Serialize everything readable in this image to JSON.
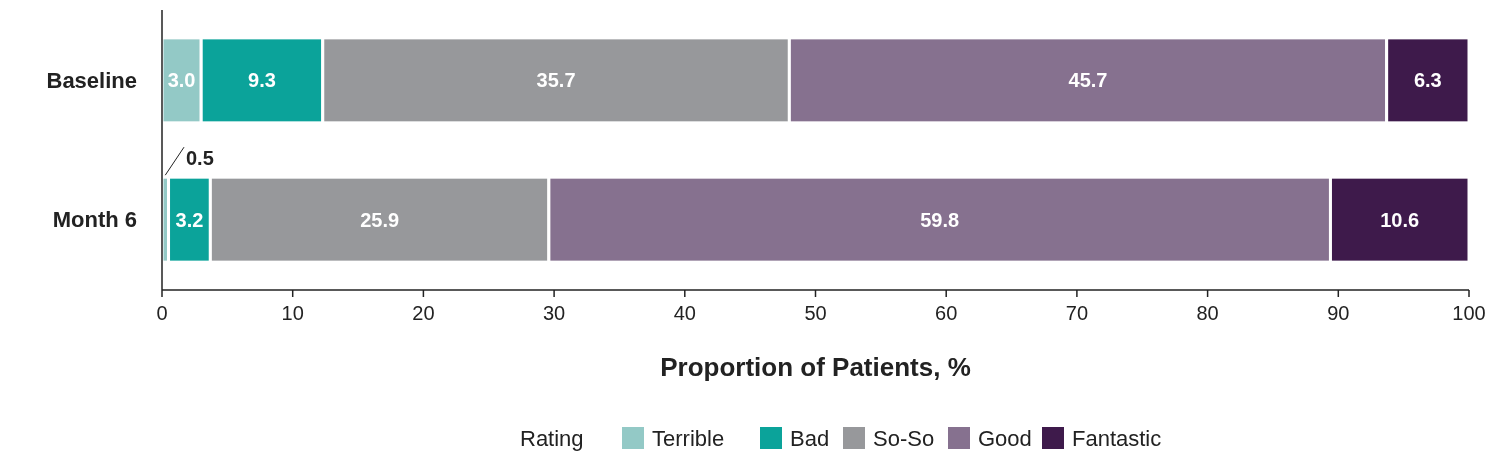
{
  "chart_data": {
    "type": "bar",
    "orientation": "horizontal",
    "stacked": true,
    "categories": [
      "Baseline",
      "Month 6"
    ],
    "series": [
      {
        "name": "Terrible",
        "color": "#93c9c6",
        "values": [
          3.0,
          0.5
        ],
        "value_labels": [
          "3.0",
          "0.5"
        ]
      },
      {
        "name": "Bad",
        "color": "#0ba39a",
        "values": [
          9.3,
          3.2
        ],
        "value_labels": [
          "9.3",
          "3.2"
        ]
      },
      {
        "name": "So-So",
        "color": "#97989b",
        "values": [
          35.7,
          25.9
        ],
        "value_labels": [
          "35.7",
          "25.9"
        ]
      },
      {
        "name": "Good",
        "color": "#86718f",
        "values": [
          45.7,
          59.8
        ],
        "value_labels": [
          "45.7",
          "59.8"
        ]
      },
      {
        "name": "Fantastic",
        "color": "#3e1a4b",
        "values": [
          6.3,
          10.6
        ],
        "value_labels": [
          "6.3",
          "10.6"
        ]
      }
    ],
    "xlim": [
      0,
      100
    ],
    "xticks": [
      0,
      10,
      20,
      30,
      40,
      50,
      60,
      70,
      80,
      90,
      100
    ],
    "xlabel": "Proportion of Patients, %",
    "legend_title": "Rating",
    "legend": "bottom"
  }
}
